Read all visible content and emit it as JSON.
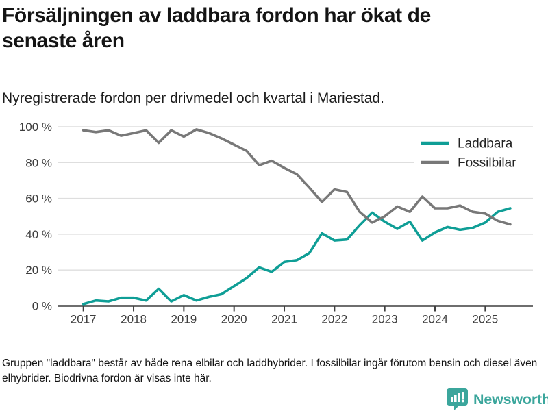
{
  "header": {
    "title": "Försäljningen av laddbara fordon har ökat de senaste åren",
    "subtitle": "Nyregistrerade fordon per drivmedel och kvartal i Mariestad."
  },
  "chart_data": {
    "type": "line",
    "title": "Nyregistrerade fordon per drivmedel och kvartal i Mariestad",
    "xlabel": "",
    "ylabel": "",
    "ylim": [
      0,
      100
    ],
    "grid": "horizontal",
    "legend_position": "top-right",
    "x_tick_labels": [
      "2017",
      "2018",
      "2019",
      "2020",
      "2021",
      "2022",
      "2023",
      "2024",
      "2025"
    ],
    "yticks": [
      {
        "value": 0,
        "label": "0 %"
      },
      {
        "value": 20,
        "label": "20 %"
      },
      {
        "value": 40,
        "label": "40 %"
      },
      {
        "value": 60,
        "label": "60 %"
      },
      {
        "value": 80,
        "label": "80 %"
      },
      {
        "value": 100,
        "label": "100 %"
      }
    ],
    "x": [
      "2017-Q1",
      "2017-Q2",
      "2017-Q3",
      "2017-Q4",
      "2018-Q1",
      "2018-Q2",
      "2018-Q3",
      "2018-Q4",
      "2019-Q1",
      "2019-Q2",
      "2019-Q3",
      "2019-Q4",
      "2020-Q1",
      "2020-Q2",
      "2020-Q3",
      "2020-Q4",
      "2021-Q1",
      "2021-Q2",
      "2021-Q3",
      "2021-Q4",
      "2022-Q1",
      "2022-Q2",
      "2022-Q3",
      "2022-Q4",
      "2023-Q1",
      "2023-Q2",
      "2023-Q3",
      "2023-Q4",
      "2024-Q1",
      "2024-Q2",
      "2024-Q3",
      "2024-Q4",
      "2025-Q1",
      "2025-Q2",
      "2025-Q3"
    ],
    "series": [
      {
        "name": "Laddbara",
        "color": "#0f9e96",
        "values": [
          1,
          3,
          2.5,
          4.5,
          4.5,
          3,
          9.5,
          2.5,
          6,
          3,
          5,
          6.5,
          11,
          15.5,
          21.5,
          19,
          24.5,
          25.5,
          29.5,
          40.5,
          36.5,
          37,
          45,
          52,
          47,
          43,
          47,
          36.5,
          41,
          44,
          42.5,
          43.5,
          46.5,
          52.5,
          54.5
        ]
      },
      {
        "name": "Fossilbilar",
        "color": "#787878",
        "values": [
          98,
          97,
          98,
          95,
          96.5,
          98,
          91,
          98,
          94.5,
          98.5,
          96.5,
          93.5,
          90,
          86.5,
          78.5,
          81,
          77,
          73.5,
          66,
          58,
          65,
          63.5,
          52.5,
          46.5,
          50,
          55.5,
          52.5,
          61,
          54.5,
          54.5,
          56,
          52.5,
          51.5,
          47.5,
          45.5
        ]
      }
    ]
  },
  "footer": {
    "note": "Gruppen \"laddbara\" består av både rena elbilar och laddhybrider. I fossilbilar ingår förutom bensin och diesel även elhybrider. Biodrivna fordon är visas inte här.",
    "brand": "Newsworthy",
    "brand_icon": "bar-chart-speech-bubble-icon"
  },
  "colors": {
    "accent_teal": "#0f9e96",
    "series_gray": "#787878",
    "logo_teal": "#3ba69c",
    "gridline": "#dedede",
    "axis": "#3f3f3f"
  }
}
